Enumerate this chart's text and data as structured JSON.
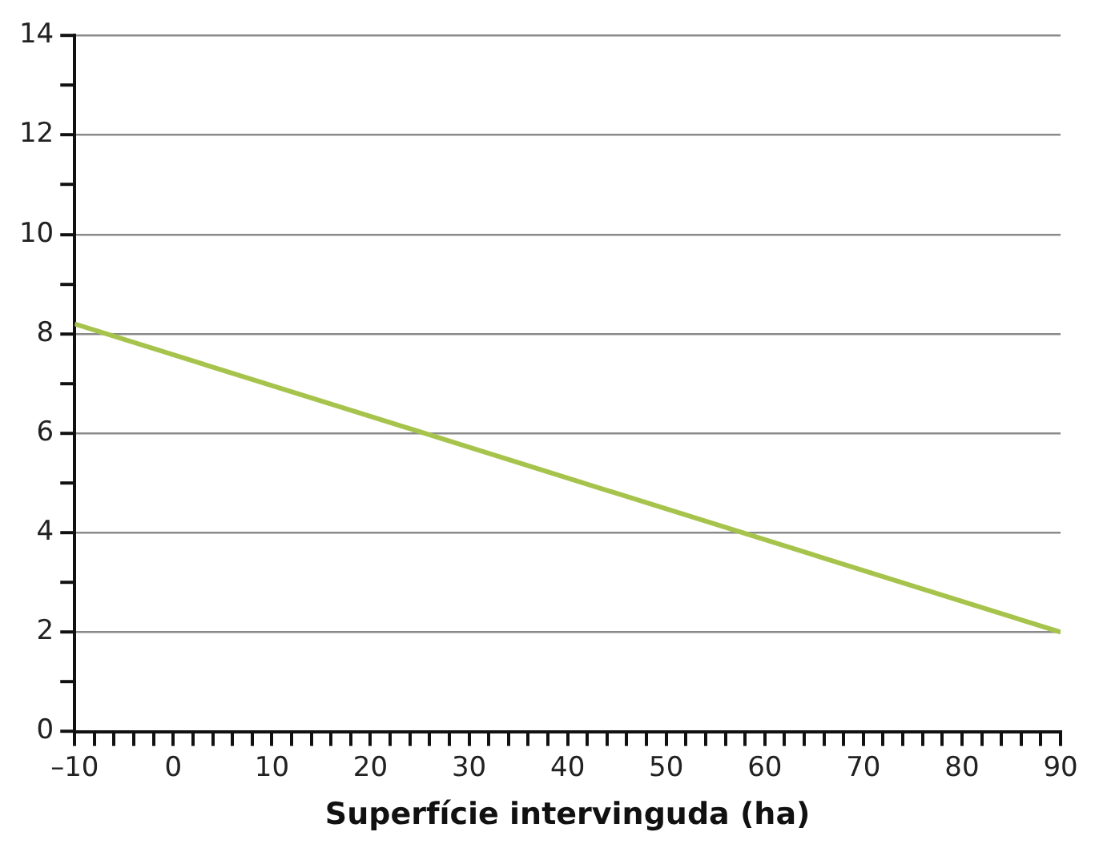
{
  "chart_data": {
    "type": "line",
    "xlabel": "Superfície intervinguda (ha)",
    "x": [
      -10,
      90
    ],
    "series": [
      {
        "color": "#a6c34c",
        "values": [
          8.2,
          2
        ]
      }
    ],
    "xlim": [
      -10,
      90
    ],
    "xticks": [
      {
        "value": -10,
        "label": "–10"
      },
      {
        "value": -8,
        "label": null
      },
      {
        "value": -6,
        "label": null
      },
      {
        "value": -4,
        "label": null
      },
      {
        "value": -2,
        "label": null
      },
      0,
      {
        "value": 2,
        "label": null
      },
      {
        "value": 4,
        "label": null
      },
      {
        "value": 6,
        "label": null
      },
      {
        "value": 8,
        "label": null
      },
      10,
      {
        "value": 12,
        "label": null
      },
      {
        "value": 14,
        "label": null
      },
      {
        "value": 16,
        "label": null
      },
      {
        "value": 18,
        "label": null
      },
      20,
      {
        "value": 22,
        "label": null
      },
      {
        "value": 24,
        "label": null
      },
      {
        "value": 26,
        "label": null
      },
      {
        "value": 28,
        "label": null
      },
      30,
      {
        "value": 32,
        "label": null
      },
      {
        "value": 34,
        "label": null
      },
      {
        "value": 36,
        "label": null
      },
      {
        "value": 38,
        "label": null
      },
      40,
      {
        "value": 42,
        "label": null
      },
      {
        "value": 44,
        "label": null
      },
      {
        "value": 46,
        "label": null
      },
      {
        "value": 48,
        "label": null
      },
      50,
      {
        "value": 52,
        "label": null
      },
      {
        "value": 54,
        "label": null
      },
      {
        "value": 56,
        "label": null
      },
      {
        "value": 58,
        "label": null
      },
      60,
      {
        "value": 62,
        "label": null
      },
      {
        "value": 64,
        "label": null
      },
      {
        "value": 66,
        "label": null
      },
      {
        "value": 68,
        "label": null
      },
      70,
      {
        "value": 72,
        "label": null
      },
      {
        "value": 74,
        "label": null
      },
      {
        "value": 76,
        "label": null
      },
      {
        "value": 78,
        "label": null
      },
      80,
      {
        "value": 82,
        "label": null
      },
      {
        "value": 84,
        "label": null
      },
      {
        "value": 86,
        "label": null
      },
      {
        "value": 88,
        "label": null
      },
      90
    ],
    "ylim": [
      0,
      14
    ],
    "yticks": [
      0,
      {
        "value": 1,
        "label": null
      },
      2,
      {
        "value": 3,
        "label": null
      },
      4,
      {
        "value": 5,
        "label": null
      },
      6,
      {
        "value": 7,
        "label": null
      },
      8,
      {
        "value": 9,
        "label": null
      },
      10,
      {
        "value": 11,
        "label": null
      },
      12,
      {
        "value": 13,
        "label": null
      },
      14
    ],
    "grid": "y",
    "marker": "none",
    "line_style": "solid"
  }
}
